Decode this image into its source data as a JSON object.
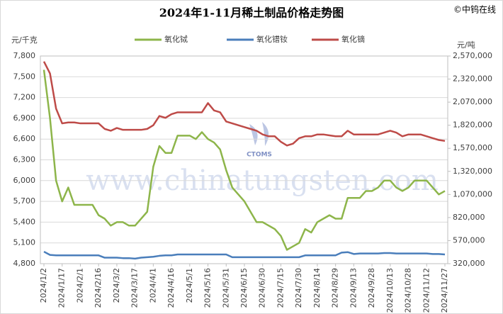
{
  "chart_data": {
    "type": "line",
    "title": "2024年1-11月稀土制品价格走势图",
    "copyright": "©中钨在线",
    "watermark": "www.chinatungsten.com",
    "logo_text": "CTOMS",
    "y_label": "元/千克",
    "y2_label": "元/吨",
    "categories": [
      "2024/1/2",
      null,
      null,
      "2024/1/17",
      null,
      null,
      "2024/2/1",
      null,
      null,
      "2024/2/16",
      null,
      null,
      "2024/3/2",
      null,
      null,
      "2024/3/17",
      null,
      null,
      "2024/4/1",
      null,
      null,
      "2024/4/16",
      null,
      null,
      "2024/5/1",
      null,
      null,
      "2024/5/16",
      null,
      null,
      "2024/5/31",
      null,
      null,
      "2024/6/15",
      null,
      null,
      "2024/6/30",
      null,
      null,
      "2024/7/15",
      null,
      null,
      "2024/7/30",
      null,
      null,
      "2024/8/14",
      null,
      null,
      "2024/8/29",
      null,
      null,
      "2024/9/13",
      null,
      null,
      "2024/9/28",
      null,
      null,
      "2024/10/13",
      null,
      null,
      "2024/10/28",
      null,
      null,
      "2024/11/12",
      null,
      null,
      "2024/11/27"
    ],
    "series": [
      {
        "name": "氧化铽",
        "color": "#8db54a",
        "axis": "y",
        "values": [
          7600,
          6900,
          6000,
          5700,
          5900,
          5650,
          5650,
          5650,
          5650,
          5500,
          5450,
          5350,
          5400,
          5400,
          5350,
          5350,
          5450,
          5550,
          6200,
          6500,
          6400,
          6400,
          6650,
          6650,
          6650,
          6600,
          6700,
          6600,
          6550,
          6450,
          6150,
          5900,
          5800,
          5700,
          5550,
          5400,
          5400,
          5350,
          5300,
          5200,
          5000,
          5050,
          5100,
          5300,
          5250,
          5400,
          5450,
          5500,
          5450,
          5450,
          5750,
          5750,
          5750,
          5850,
          5850,
          5900,
          6000,
          6000,
          5900,
          5850,
          5900,
          6000,
          6000,
          6000,
          5900,
          5800,
          5850
        ]
      },
      {
        "name": "氧化镨钕",
        "color": "#4a7ebb",
        "axis": "y2",
        "values": [
          450000,
          415000,
          410000,
          410000,
          410000,
          410000,
          410000,
          410000,
          410000,
          410000,
          385000,
          385000,
          385000,
          380000,
          380000,
          375000,
          385000,
          390000,
          395000,
          405000,
          410000,
          410000,
          420000,
          420000,
          420000,
          420000,
          420000,
          420000,
          420000,
          420000,
          420000,
          390000,
          390000,
          390000,
          390000,
          390000,
          390000,
          390000,
          390000,
          390000,
          390000,
          390000,
          390000,
          410000,
          410000,
          410000,
          410000,
          410000,
          410000,
          440000,
          445000,
          425000,
          430000,
          430000,
          430000,
          430000,
          435000,
          435000,
          430000,
          430000,
          430000,
          430000,
          430000,
          430000,
          425000,
          425000,
          420000
        ]
      },
      {
        "name": "氧化镝",
        "color": "#be4b48",
        "axis": "y2",
        "values": [
          2510000,
          2380000,
          2000000,
          1840000,
          1850000,
          1850000,
          1840000,
          1840000,
          1840000,
          1840000,
          1780000,
          1760000,
          1790000,
          1770000,
          1770000,
          1770000,
          1770000,
          1780000,
          1820000,
          1920000,
          1900000,
          1940000,
          1960000,
          1960000,
          1960000,
          1960000,
          1960000,
          2060000,
          1980000,
          1960000,
          1860000,
          1840000,
          1820000,
          1800000,
          1780000,
          1760000,
          1720000,
          1700000,
          1700000,
          1640000,
          1600000,
          1620000,
          1680000,
          1700000,
          1700000,
          1720000,
          1720000,
          1710000,
          1700000,
          1700000,
          1760000,
          1720000,
          1720000,
          1720000,
          1720000,
          1720000,
          1740000,
          1760000,
          1740000,
          1700000,
          1720000,
          1720000,
          1720000,
          1700000,
          1680000,
          1660000,
          1650000
        ]
      }
    ],
    "ylim": [
      4800,
      7800
    ],
    "yticks": [
      {
        "value": 4800,
        "label": "4,800"
      },
      {
        "value": 5100,
        "label": "5,100"
      },
      {
        "value": 5400,
        "label": "5,400"
      },
      {
        "value": 5700,
        "label": "5,700"
      },
      {
        "value": 6000,
        "label": "6,000"
      },
      {
        "value": 6300,
        "label": "6,300"
      },
      {
        "value": 6600,
        "label": "6,600"
      },
      {
        "value": 6900,
        "label": "6,900"
      },
      {
        "value": 7200,
        "label": "7,200"
      },
      {
        "value": 7500,
        "label": "7,500"
      },
      {
        "value": 7800,
        "label": "7,800"
      }
    ],
    "y2lim": [
      320000,
      2570000
    ],
    "y2ticks": [
      {
        "value": 320000,
        "label": "320,000"
      },
      {
        "value": 570000,
        "label": "570,000"
      },
      {
        "value": 820000,
        "label": "820,000"
      },
      {
        "value": 1070000,
        "label": "1,070,000"
      },
      {
        "value": 1320000,
        "label": "1,320,000"
      },
      {
        "value": 1570000,
        "label": "1,570,000"
      },
      {
        "value": 1820000,
        "label": "1,820,000"
      },
      {
        "value": 2070000,
        "label": "2,070,000"
      },
      {
        "value": 2320000,
        "label": "2,320,000"
      },
      {
        "value": 2570000,
        "label": "2,570,000"
      }
    ],
    "grid": true
  }
}
